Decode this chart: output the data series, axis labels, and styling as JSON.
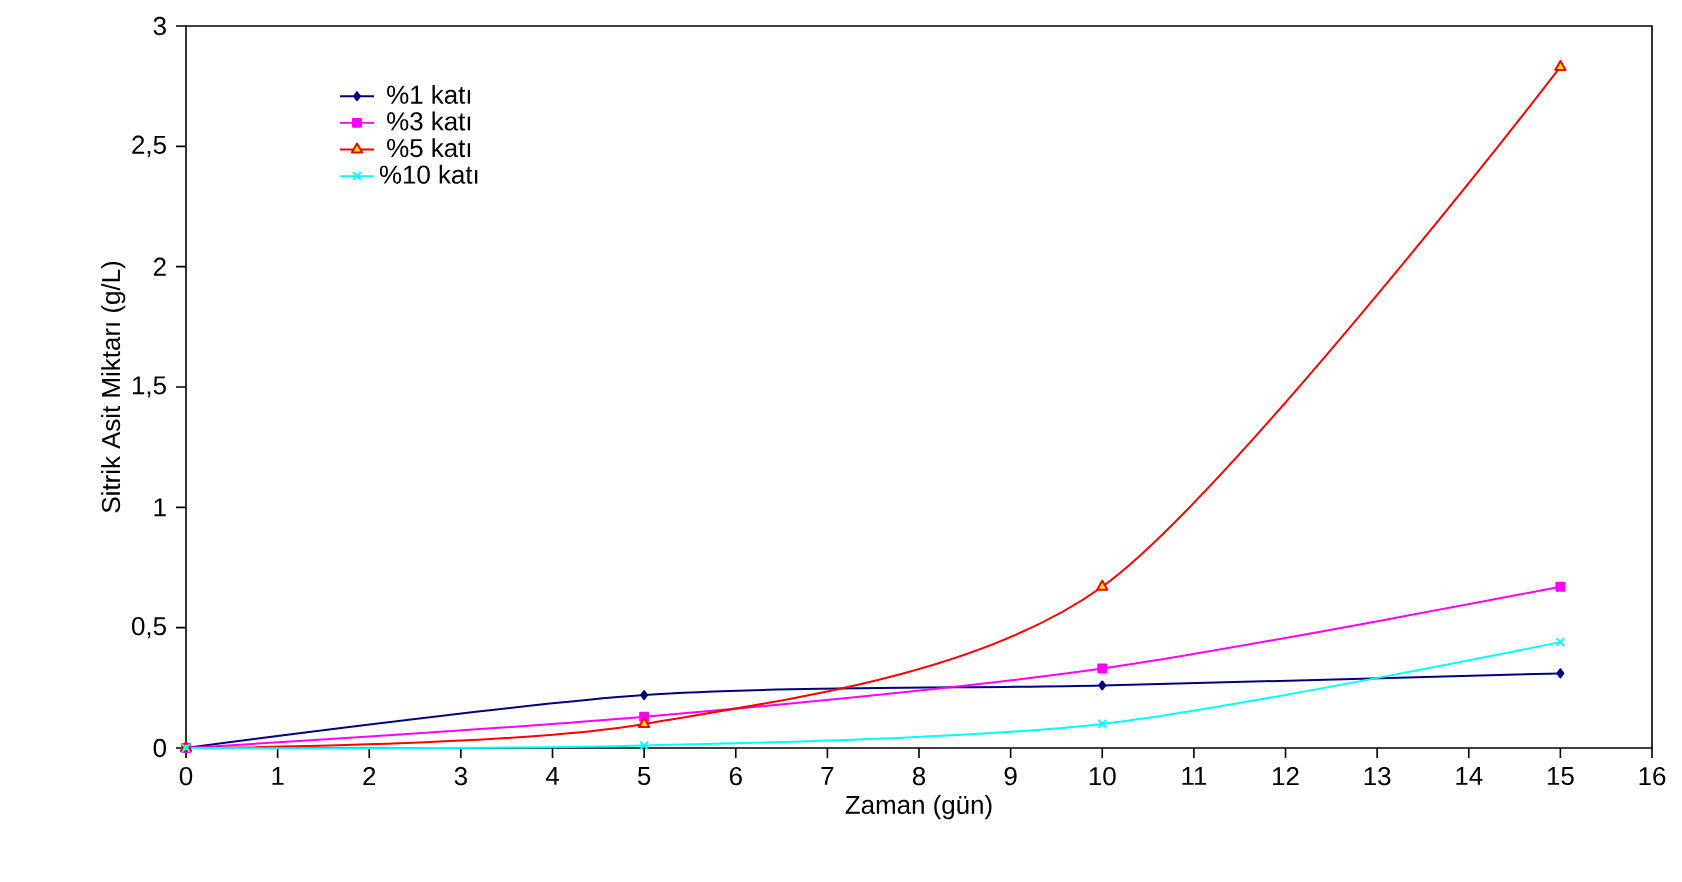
{
  "chart_data": {
    "type": "line",
    "xlabel": "Zaman (gün)",
    "ylabel": "Sitrik Asit Miktarı (g/L)",
    "x": [
      0,
      5,
      10,
      15
    ],
    "series": [
      {
        "name": "%1 katı",
        "color": "#000080",
        "marker": "diamond",
        "values": [
          0,
          0.22,
          0.26,
          0.31
        ]
      },
      {
        "name": "%3 katı",
        "color": "#ff00ff",
        "marker": "square",
        "values": [
          0,
          0.13,
          0.33,
          0.67
        ]
      },
      {
        "name": "%5 katı",
        "color": "#ff0000",
        "marker": "triangle",
        "values": [
          0,
          0.1,
          0.67,
          2.83
        ]
      },
      {
        "name": "%10 katı",
        "color": "#00ffff",
        "marker": "cross",
        "values": [
          0,
          0.01,
          0.1,
          0.44
        ]
      }
    ],
    "xlim": [
      0,
      16
    ],
    "xticks": [
      0,
      1,
      2,
      3,
      4,
      5,
      6,
      7,
      8,
      9,
      10,
      11,
      12,
      13,
      14,
      15,
      16
    ],
    "ylim": [
      0,
      3
    ],
    "yticks": [
      0,
      {
        "value": 0.5,
        "label": "0,5"
      },
      1,
      {
        "value": 1.5,
        "label": "1,5"
      },
      2,
      {
        "value": 2.5,
        "label": "2,5"
      },
      3
    ],
    "grid": false,
    "legend": "top left",
    "line_style": "solid"
  }
}
